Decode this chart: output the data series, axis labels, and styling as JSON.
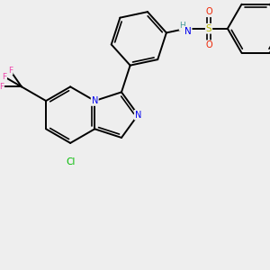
{
  "background_color": "#eeeeee",
  "bond_color": "#000000",
  "atom_colors": {
    "N_blue": "#0000ee",
    "N_teal": "#008080",
    "Cl": "#00bb00",
    "F": "#ee44aa",
    "S": "#bbbb00",
    "O": "#ee2200",
    "H": "#449999"
  },
  "figsize": [
    3.0,
    3.0
  ],
  "dpi": 100,
  "xlim": [
    0,
    10
  ],
  "ylim": [
    0,
    10
  ]
}
